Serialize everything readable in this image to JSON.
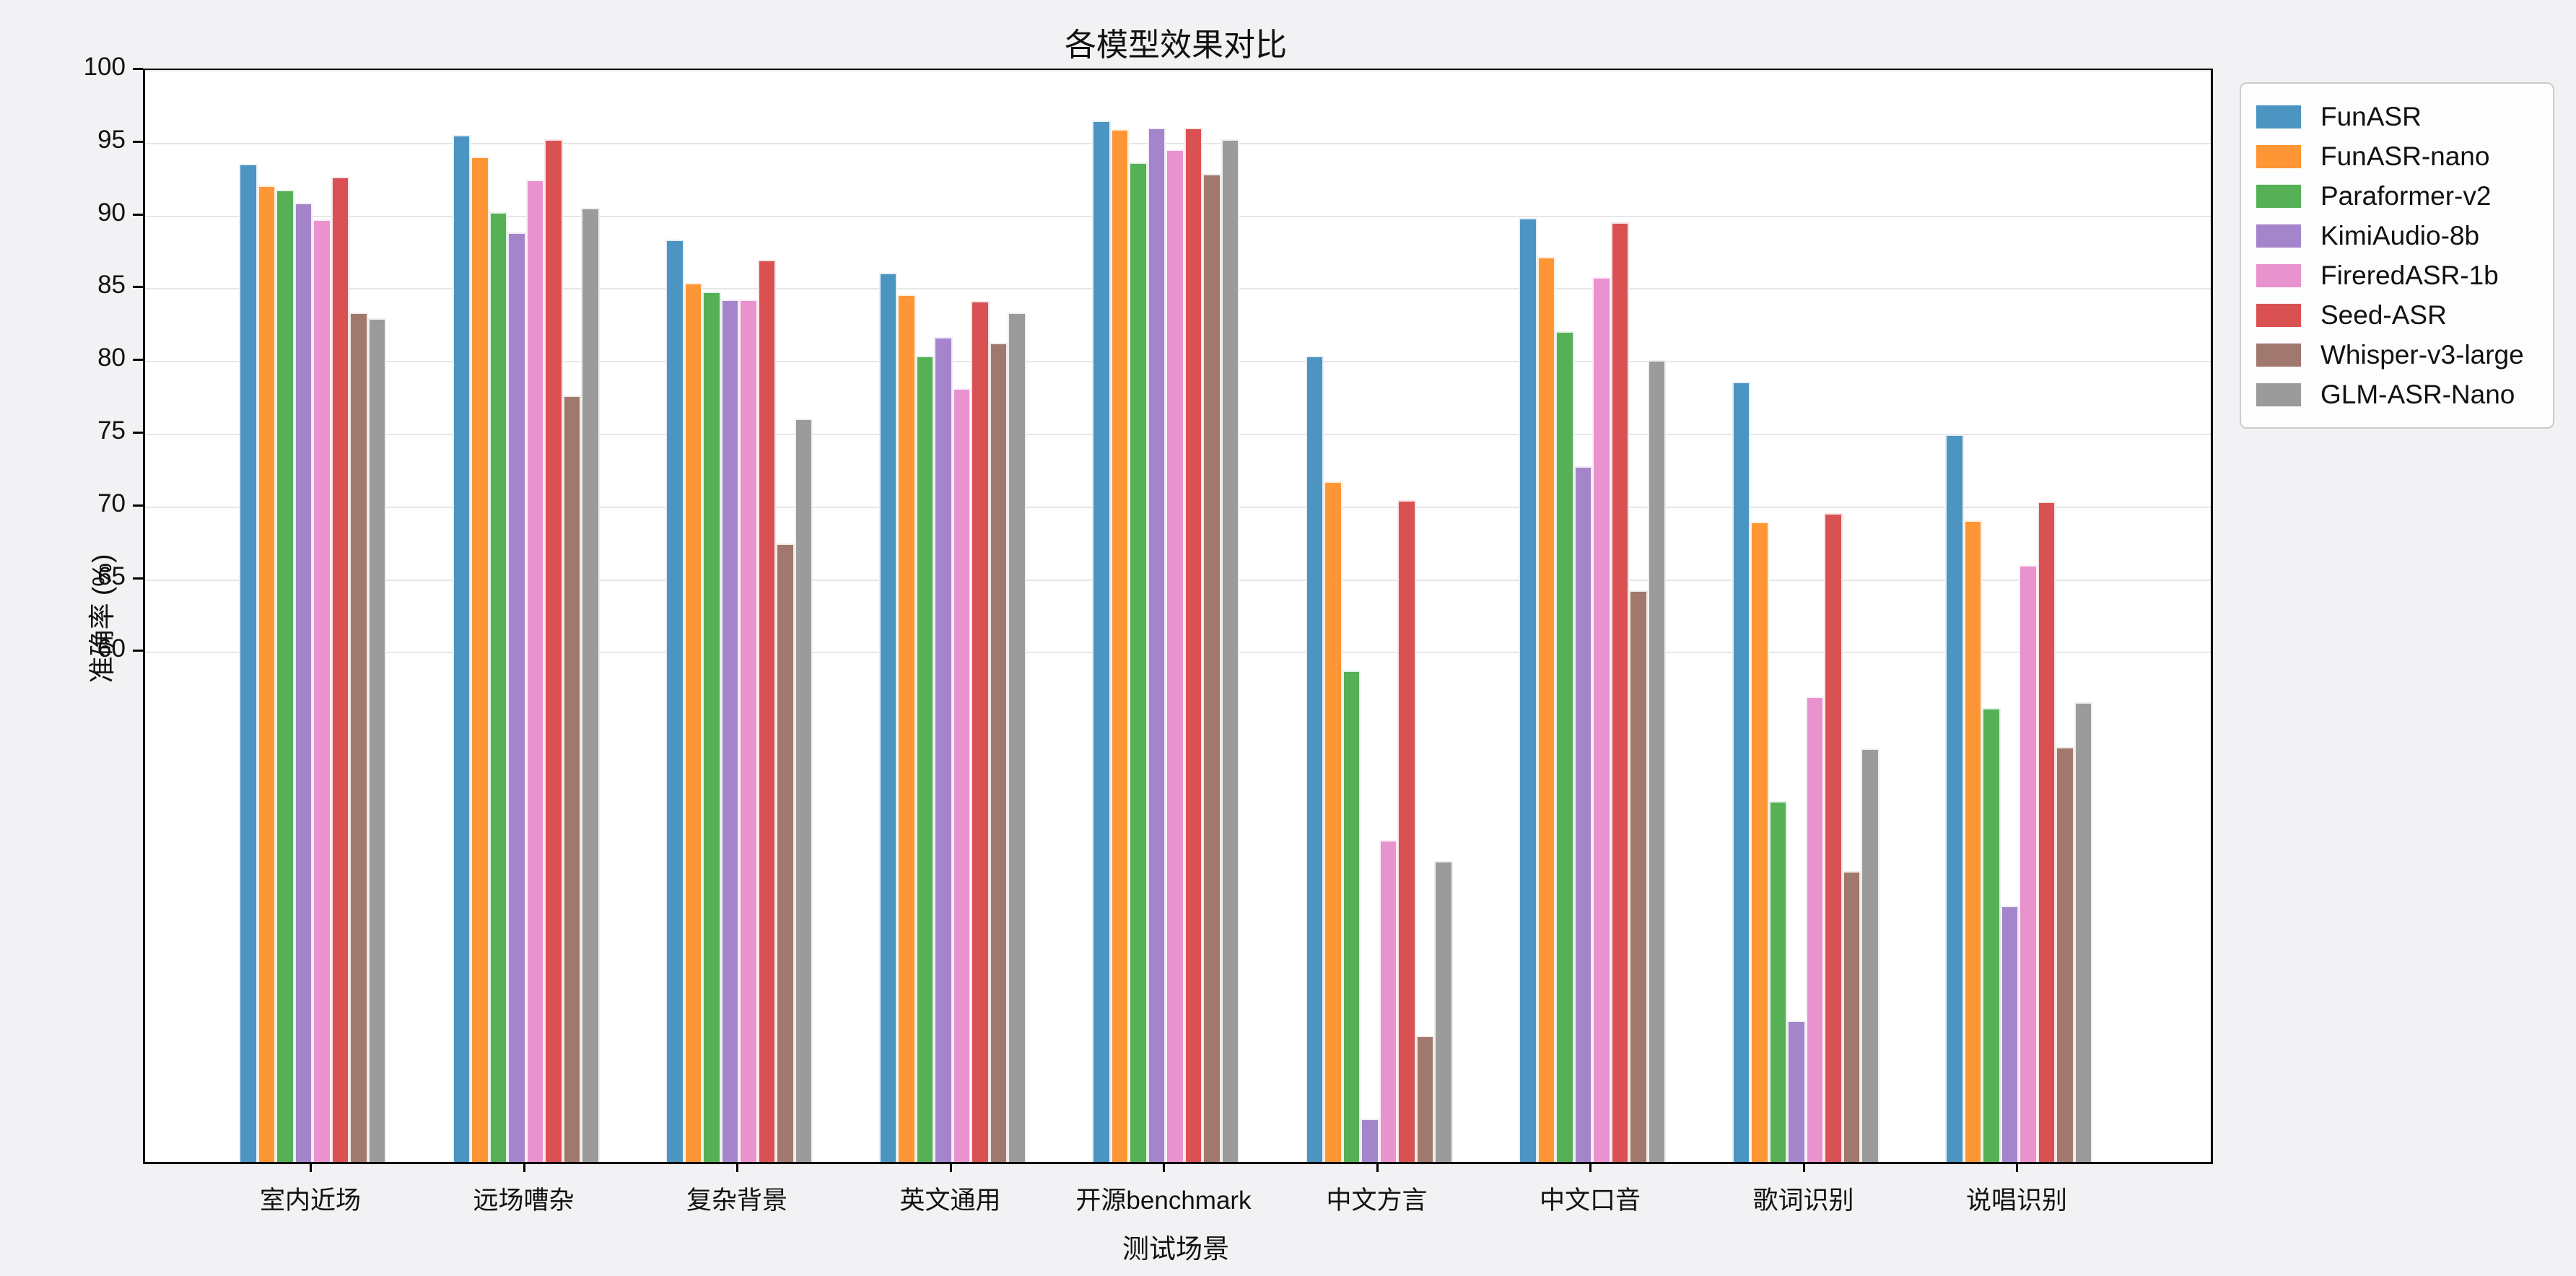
{
  "title": "各模型效果对比",
  "chart_data": {
    "type": "bar",
    "title": "各模型效果对比",
    "xlabel": "测试场景",
    "ylabel": "准确率 (%)",
    "ylim": [
      25,
      100
    ],
    "yticks": [
      60,
      65,
      70,
      75,
      80,
      85,
      90,
      95,
      100
    ],
    "grid": true,
    "legend_position": "outside-upper-right",
    "background_color": "#f2f2f4",
    "plot_background_color": "#ffffff",
    "categories": [
      "室内近场",
      "远场嘈杂",
      "复杂背景",
      "英文通用",
      "开源benchmark",
      "中文方言",
      "中文口音",
      "歌词识别",
      "说唱识别"
    ],
    "series": [
      {
        "name": "FunASR",
        "color": "#4c94c2",
        "values": [
          93.6,
          95.6,
          88.4,
          86.1,
          96.6,
          80.4,
          89.9,
          78.6,
          75.0
        ]
      },
      {
        "name": "FunASR-nano",
        "color": "#ff9636",
        "values": [
          92.1,
          94.1,
          85.4,
          84.6,
          96.0,
          71.8,
          87.2,
          69.0,
          69.1
        ]
      },
      {
        "name": "Paraformer-v2",
        "color": "#55b056",
        "values": [
          91.8,
          90.3,
          84.8,
          80.4,
          93.7,
          58.8,
          82.1,
          49.8,
          56.2
        ]
      },
      {
        "name": "KimiAudio-8b",
        "color": "#a485cb",
        "values": [
          90.9,
          88.9,
          84.3,
          81.7,
          96.1,
          28.0,
          72.8,
          34.7,
          42.6
        ]
      },
      {
        "name": "FireredASR-1b",
        "color": "#e892ce",
        "values": [
          89.8,
          92.5,
          84.3,
          78.2,
          94.6,
          47.1,
          85.8,
          57.0,
          66.0
        ]
      },
      {
        "name": "Seed-ASR",
        "color": "#d95153",
        "values": [
          92.7,
          95.3,
          87.0,
          84.2,
          96.1,
          70.5,
          89.6,
          69.6,
          70.4
        ]
      },
      {
        "name": "Whisper-v3-large",
        "color": "#a0786d",
        "values": [
          83.4,
          77.7,
          67.5,
          81.3,
          92.9,
          33.7,
          64.3,
          45.0,
          53.5
        ]
      },
      {
        "name": "GLM-ASR-Nano",
        "color": "#9b9b9b",
        "values": [
          83.0,
          90.6,
          76.1,
          83.4,
          95.3,
          45.7,
          80.1,
          53.4,
          56.6
        ]
      }
    ]
  }
}
